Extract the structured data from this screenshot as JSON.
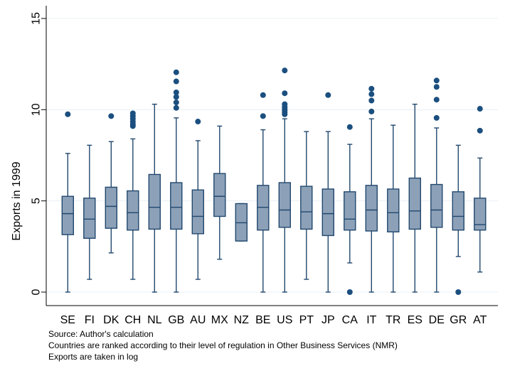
{
  "colors": {
    "box_fill": "#8ca1b8",
    "box_stroke": "#22486e",
    "outlier": "#1b4f7f",
    "grid": "#eaf0f5",
    "axis": "#000000"
  },
  "chart_data": {
    "type": "box",
    "title": "",
    "xlabel": "",
    "ylabel": "Exports in 1999",
    "ylim": [
      0,
      15
    ],
    "yticks": [
      0,
      5,
      10,
      15
    ],
    "grid": true,
    "categories": [
      "SE",
      "FI",
      "DK",
      "CH",
      "NL",
      "GB",
      "AU",
      "MX",
      "NZ",
      "BE",
      "US",
      "PT",
      "JP",
      "CA",
      "IT",
      "TR",
      "ES",
      "DE",
      "GR",
      "AT"
    ],
    "series": [
      {
        "category": "SE",
        "min": 0,
        "q1": 3.15,
        "median": 4.3,
        "q3": 5.25,
        "max": 7.6,
        "outliers": [
          9.75
        ]
      },
      {
        "category": "FI",
        "min": 0.7,
        "q1": 2.95,
        "median": 4.0,
        "q3": 5.15,
        "max": 8.05,
        "outliers": []
      },
      {
        "category": "DK",
        "min": 2.15,
        "q1": 3.5,
        "median": 4.7,
        "q3": 5.75,
        "max": 8.25,
        "outliers": [
          9.65
        ]
      },
      {
        "category": "CH",
        "min": 0.7,
        "q1": 3.4,
        "median": 4.35,
        "q3": 5.55,
        "max": 8.4,
        "outliers": [
          9.1,
          9.2,
          9.35,
          9.5,
          9.65,
          9.8
        ]
      },
      {
        "category": "NL",
        "min": 0,
        "q1": 3.45,
        "median": 4.65,
        "q3": 6.45,
        "max": 10.3,
        "outliers": []
      },
      {
        "category": "GB",
        "min": 0,
        "q1": 3.45,
        "median": 4.65,
        "q3": 6.0,
        "max": 9.55,
        "outliers": [
          10.1,
          10.4,
          10.7,
          10.95,
          11.55,
          12.05
        ]
      },
      {
        "category": "AU",
        "min": 0.7,
        "q1": 3.2,
        "median": 4.15,
        "q3": 5.6,
        "max": 8.3,
        "outliers": [
          9.35
        ]
      },
      {
        "category": "MX",
        "min": 1.8,
        "q1": 4.15,
        "median": 5.25,
        "q3": 6.5,
        "max": 9.1,
        "outliers": []
      },
      {
        "category": "NZ",
        "min": 2.8,
        "q1": 2.8,
        "median": 3.8,
        "q3": 4.85,
        "max": 4.85,
        "outliers": []
      },
      {
        "category": "BE",
        "min": 0,
        "q1": 3.4,
        "median": 4.65,
        "q3": 5.85,
        "max": 8.9,
        "outliers": [
          9.65,
          10.8
        ]
      },
      {
        "category": "US",
        "min": 0,
        "q1": 3.55,
        "median": 4.5,
        "q3": 6.0,
        "max": 9.5,
        "outliers": [
          9.75,
          9.85,
          9.95,
          10.05,
          10.15,
          10.3,
          10.9,
          12.15
        ]
      },
      {
        "category": "PT",
        "min": 0.7,
        "q1": 3.45,
        "median": 4.4,
        "q3": 5.8,
        "max": 8.8,
        "outliers": []
      },
      {
        "category": "JP",
        "min": 0,
        "q1": 3.1,
        "median": 4.3,
        "q3": 5.65,
        "max": 8.8,
        "outliers": [
          10.8
        ]
      },
      {
        "category": "CA",
        "min": 1.6,
        "q1": 3.4,
        "median": 4.0,
        "q3": 5.5,
        "max": 8.1,
        "outliers": [
          0,
          9.05
        ]
      },
      {
        "category": "IT",
        "min": 0,
        "q1": 3.35,
        "median": 4.5,
        "q3": 5.85,
        "max": 9.5,
        "outliers": [
          9.9,
          10.5,
          10.85,
          11.15
        ]
      },
      {
        "category": "TR",
        "min": 0,
        "q1": 3.3,
        "median": 4.35,
        "q3": 5.65,
        "max": 9.15,
        "outliers": []
      },
      {
        "category": "ES",
        "min": 0,
        "q1": 3.45,
        "median": 4.45,
        "q3": 6.25,
        "max": 10.3,
        "outliers": []
      },
      {
        "category": "DE",
        "min": 0,
        "q1": 3.55,
        "median": 4.5,
        "q3": 5.9,
        "max": 9.0,
        "outliers": [
          9.55,
          10.55,
          11.25,
          11.6
        ]
      },
      {
        "category": "GR",
        "min": 1.95,
        "q1": 3.4,
        "median": 4.15,
        "q3": 5.5,
        "max": 8.05,
        "outliers": [
          0
        ]
      },
      {
        "category": "AT",
        "min": 1.1,
        "q1": 3.4,
        "median": 3.7,
        "q3": 5.15,
        "max": 7.35,
        "outliers": [
          8.85,
          10.05
        ]
      }
    ]
  },
  "notes": {
    "line1": "Source: Author's calculation",
    "line2": "Countries are ranked according to their level of regulation in Other Business Services (NMR)",
    "line3": "Exports are taken in log"
  }
}
